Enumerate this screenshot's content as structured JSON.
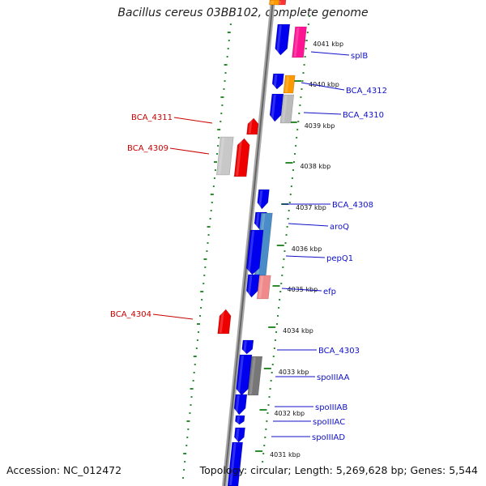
{
  "title": "Bacillus cereus 03BB102, complete genome",
  "footer": {
    "accession": "Accession: NC_012472",
    "topology": "Topology: circular; Length: 5,269,628 bp; Genes: 5,544"
  },
  "colors": {
    "forward_gene": "#0000ee",
    "reverse_gene": "#ee0000",
    "forward_label": "#1010c8",
    "reverse_label": "#c80000",
    "tick": "#2e8b2e",
    "backbone": "#888888"
  },
  "map": {
    "kbp_ticks": [
      "4041 kbp",
      "4040 kbp",
      "4039 kbp",
      "4038 kbp",
      "4037 kbp",
      "4036 kbp",
      "4035 kbp",
      "4034 kbp",
      "4033 kbp",
      "4032 kbp",
      "4031 kbp"
    ],
    "forward_labels": [
      "splB",
      "BCA_4312",
      "BCA_4310",
      "BCA_4308",
      "aroQ",
      "pepQ1",
      "efp",
      "BCA_4303",
      "spoIIIAA",
      "spoIIIAB",
      "spoIIIAC",
      "spoIIIAD"
    ],
    "reverse_labels": [
      "BCA_4311",
      "BCA_4309",
      "BCA_4304"
    ]
  }
}
